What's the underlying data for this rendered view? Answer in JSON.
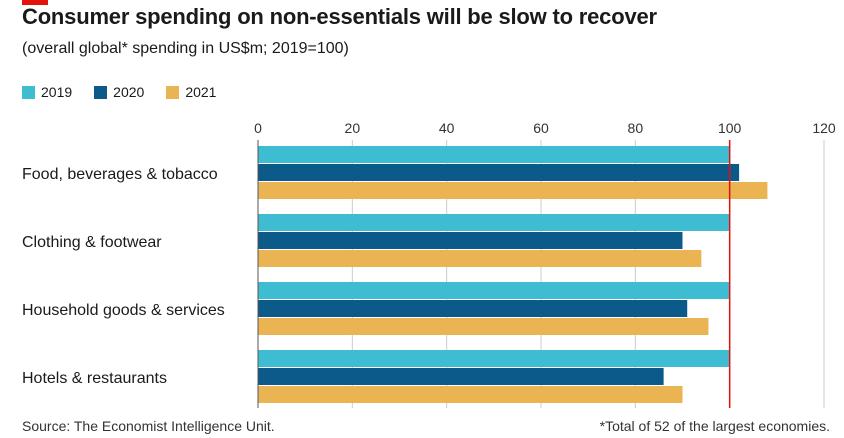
{
  "title": "Consumer spending on non-essentials will be slow to recover",
  "subtitle": "(overall global* spending in US$m; 2019=100)",
  "source": "Source: The Economist Intelligence Unit.",
  "footnote": "*Total of 52 of the largest economies.",
  "colors": {
    "2019": "#3ebcd2",
    "2020": "#0b5a8a",
    "2021": "#ebb452",
    "reference_line": "#e3120b",
    "grid": "#cccccc"
  },
  "chart_data": {
    "type": "bar",
    "orientation": "horizontal",
    "categories": [
      "Food, beverages & tobacco",
      "Clothing & footwear",
      "Household goods & services",
      "Hotels & restaurants"
    ],
    "series": [
      {
        "name": "2019",
        "values": [
          100,
          100,
          100,
          100
        ]
      },
      {
        "name": "2020",
        "values": [
          102,
          90,
          91,
          86
        ]
      },
      {
        "name": "2021",
        "values": [
          108,
          94,
          95.5,
          90
        ]
      }
    ],
    "xlim": [
      0,
      120
    ],
    "xticks": [
      0,
      20,
      40,
      60,
      80,
      100,
      120
    ],
    "reference_value": 100,
    "grid": true,
    "legend_position": "top-left"
  }
}
